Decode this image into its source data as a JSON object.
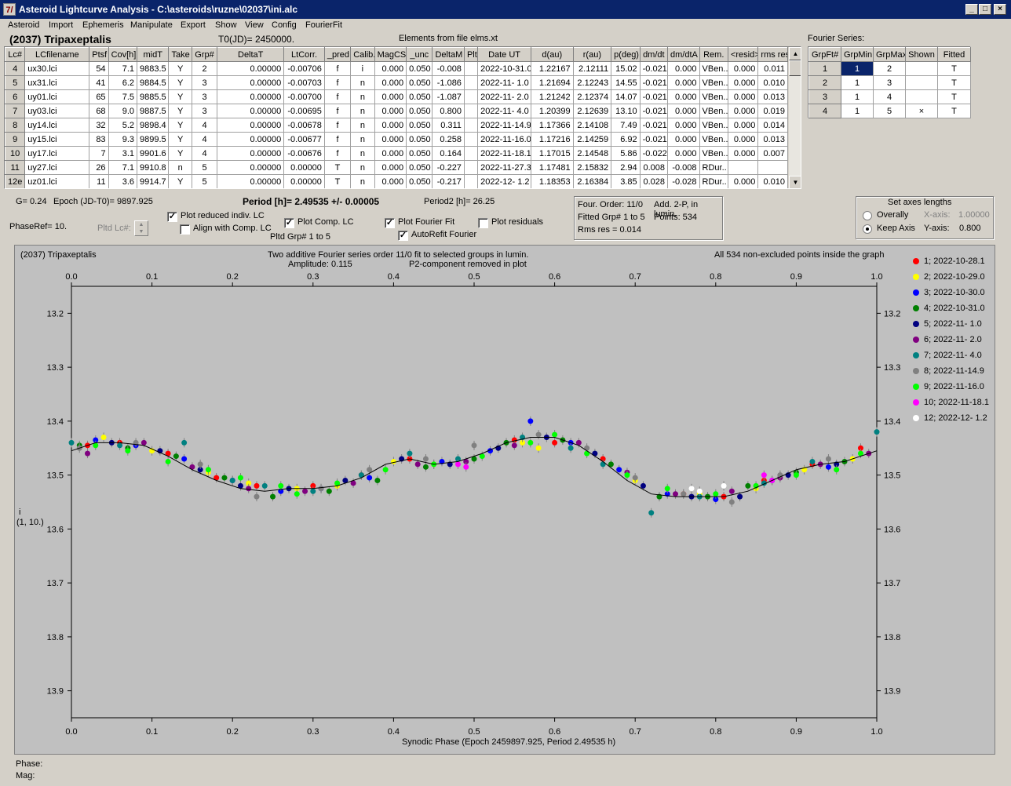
{
  "window": {
    "title": "Asteroid Lightcurve Analysis - C:\\asteroids\\ruzne\\02037\\ini.alc",
    "app_icon_glyph": "7/",
    "min_glyph": "_",
    "max_glyph": "□",
    "close_glyph": "×"
  },
  "menu": [
    "Asteroid",
    "Import",
    "Ephemeris",
    "Manipulate",
    "Export",
    "Show",
    "View",
    "Config",
    "FourierFit"
  ],
  "header": {
    "asteroid": "(2037) Tripaxeptalis",
    "t0": "T0(JD)= 2450000.",
    "elements": "Elements from file elms.xt",
    "fourier_title": "Fourier Series:"
  },
  "table": {
    "columns": [
      "Lc#",
      "LCfilename",
      "Ptsf",
      "Cov[h]",
      "midT",
      "Take",
      "Grp#",
      "DeltaT",
      "LtCorr.",
      "_pred.",
      "Calib.",
      "MagCS",
      "_unc",
      "DeltaM",
      "Plt",
      "Date UT",
      "d(au)",
      "r(au)",
      "p(deg)",
      "dm/dt",
      "dm/dtA",
      "Rem.",
      "<resid>",
      "rms res"
    ],
    "rows": [
      [
        "4",
        "ux30.lci",
        "54",
        "7.1",
        "9883.5",
        "Y",
        "2",
        "0.00000",
        "-0.00706",
        "f",
        "i",
        "0.000",
        "0.050",
        "-0.008",
        "",
        "2022-10-31.0",
        "1.22167",
        "2.12111",
        "15.02",
        "-0.021",
        "0.000",
        "VBen..",
        "0.000",
        "0.011"
      ],
      [
        "5",
        "ux31.lci",
        "41",
        "6.2",
        "9884.5",
        "Y",
        "3",
        "0.00000",
        "-0.00703",
        "f",
        "n",
        "0.000",
        "0.050",
        "-1.086",
        "",
        "2022-11- 1.0",
        "1.21694",
        "2.12243",
        "14.55",
        "-0.021",
        "0.000",
        "VBen..",
        "0.000",
        "0.010"
      ],
      [
        "6",
        "uy01.lci",
        "65",
        "7.5",
        "9885.5",
        "Y",
        "3",
        "0.00000",
        "-0.00700",
        "f",
        "n",
        "0.000",
        "0.050",
        "-1.087",
        "",
        "2022-11- 2.0",
        "1.21242",
        "2.12374",
        "14.07",
        "-0.021",
        "0.000",
        "VBen..",
        "0.000",
        "0.013"
      ],
      [
        "7",
        "uy03.lci",
        "68",
        "9.0",
        "9887.5",
        "Y",
        "3",
        "0.00000",
        "-0.00695",
        "f",
        "n",
        "0.000",
        "0.050",
        "0.800",
        "",
        "2022-11- 4.0",
        "1.20399",
        "2.12639",
        "13.10",
        "-0.021",
        "0.000",
        "VBen..",
        "0.000",
        "0.019"
      ],
      [
        "8",
        "uy14.lci",
        "32",
        "5.2",
        "9898.4",
        "Y",
        "4",
        "0.00000",
        "-0.00678",
        "f",
        "n",
        "0.000",
        "0.050",
        "0.311",
        "",
        "2022-11-14.9",
        "1.17366",
        "2.14108",
        "7.49",
        "-0.021",
        "0.000",
        "VBen..",
        "0.000",
        "0.014"
      ],
      [
        "9",
        "uy15.lci",
        "83",
        "9.3",
        "9899.5",
        "Y",
        "4",
        "0.00000",
        "-0.00677",
        "f",
        "n",
        "0.000",
        "0.050",
        "0.258",
        "",
        "2022-11-16.0",
        "1.17216",
        "2.14259",
        "6.92",
        "-0.021",
        "0.000",
        "VBen..",
        "0.000",
        "0.013"
      ],
      [
        "10",
        "uy17.lci",
        "7",
        "3.1",
        "9901.6",
        "Y",
        "4",
        "0.00000",
        "-0.00676",
        "f",
        "n",
        "0.000",
        "0.050",
        "0.164",
        "",
        "2022-11-18.1",
        "1.17015",
        "2.14548",
        "5.86",
        "-0.022",
        "0.000",
        "VBen..",
        "0.000",
        "0.007"
      ],
      [
        "11",
        "uy27.lci",
        "26",
        "7.1",
        "9910.8",
        "n",
        "5",
        "0.00000",
        "0.00000",
        "T",
        "n",
        "0.000",
        "0.050",
        "-0.227",
        "",
        "2022-11-27.3",
        "1.17481",
        "2.15832",
        "2.94",
        "0.008",
        "-0.008",
        "RDur..",
        "",
        ""
      ],
      [
        "12e",
        "uz01.lci",
        "11",
        "3.6",
        "9914.7",
        "Y",
        "5",
        "0.00000",
        "0.00000",
        "T",
        "n",
        "0.000",
        "0.050",
        "-0.217",
        "",
        "2022-12- 1.2",
        "1.18353",
        "2.16384",
        "3.85",
        "0.028",
        "-0.028",
        "RDur..",
        "0.000",
        "0.010"
      ]
    ]
  },
  "fourier_table": {
    "columns": [
      "GrpFt#",
      "GrpMin",
      "GrpMax",
      "Shown",
      "Fitted"
    ],
    "rows": [
      [
        "1",
        "1",
        "2",
        "",
        "T"
      ],
      [
        "2",
        "1",
        "3",
        "",
        "T"
      ],
      [
        "3",
        "1",
        "4",
        "",
        "T"
      ],
      [
        "4",
        "1",
        "5",
        "×",
        "T"
      ]
    ]
  },
  "controls": {
    "g": "G= 0.24",
    "epoch": "Epoch (JD-T0)= 9897.925",
    "period": "Period [h]= 2.49535 +/- 0.00005",
    "period2": "Period2 [h]= 26.25",
    "phaseref": "PhaseRef= 10.",
    "pltd_lc": "Pltd Lc#:",
    "plot_reduced": "Plot reduced indiv. LC",
    "align_comp": "Align with Comp. LC",
    "plot_comp": "Plot Comp. LC",
    "pltd_grp": "Pltd Grp#  1   to   5",
    "plot_fourier": "Plot Fourier Fit",
    "autorefit": "AutoRefit Fourier",
    "plot_residuals": "Plot residuals",
    "check_mark": "✓",
    "four_order": "Four. Order: 11/0",
    "add2p": "Add. 2-P, in lumin.",
    "fitted_grp": "Fitted Grp# 1 to 5",
    "points": "Points: 534",
    "rms_res": "Rms res     = 0.014",
    "axes_title": "Set axes lengths",
    "overally": "Overally",
    "keep_axis": "Keep Axis",
    "xaxis_label": "X-axis:",
    "xaxis_val": "1.00000",
    "yaxis_label": "Y-axis:",
    "yaxis_val": "0.800"
  },
  "plot": {
    "title_left": "(2037) Tripaxeptalis",
    "title_center1": "Two additive Fourier series order 11/0 fit to selected groups in lumin.",
    "title_center2": "Amplitude: 0.115",
    "title_center3": "P2-component removed in plot",
    "title_right": "All 534 non-excluded points inside the graph",
    "ylabel1": "i",
    "ylabel2": "(1, 10.)",
    "xlabel": "Synodic Phase (Epoch 2459897.925, Period 2.49535 h)",
    "bg_color": "#c0c0c0"
  },
  "chart_data": {
    "type": "scatter",
    "xlabel": "Synodic Phase (Epoch 2459897.925, Period 2.49535 h)",
    "ylabel": "i",
    "xlim": [
      0.0,
      1.0
    ],
    "ylim": [
      13.15,
      13.95
    ],
    "y_inverted": true,
    "x_ticks": [
      "0.0",
      "0.1",
      "0.2",
      "0.3",
      "0.4",
      "0.5",
      "0.6",
      "0.7",
      "0.8",
      "0.9",
      "1.0"
    ],
    "y_ticks": [
      "13.2",
      "13.3",
      "13.4",
      "13.5",
      "13.6",
      "13.7",
      "13.8",
      "13.9"
    ],
    "grid": false,
    "legend_position": "right",
    "fit_curve": {
      "x": [
        0.0,
        0.03,
        0.06,
        0.09,
        0.12,
        0.15,
        0.18,
        0.21,
        0.24,
        0.27,
        0.3,
        0.33,
        0.36,
        0.39,
        0.42,
        0.45,
        0.48,
        0.51,
        0.54,
        0.57,
        0.6,
        0.63,
        0.66,
        0.69,
        0.72,
        0.75,
        0.78,
        0.81,
        0.84,
        0.87,
        0.9,
        0.93,
        0.96,
        1.0
      ],
      "y": [
        13.455,
        13.44,
        13.44,
        13.445,
        13.465,
        13.49,
        13.51,
        13.525,
        13.53,
        13.525,
        13.525,
        13.52,
        13.505,
        13.48,
        13.47,
        13.48,
        13.475,
        13.46,
        13.44,
        13.43,
        13.43,
        13.445,
        13.475,
        13.51,
        13.535,
        13.54,
        13.54,
        13.54,
        13.53,
        13.51,
        13.49,
        13.48,
        13.475,
        13.455
      ]
    },
    "series": [
      {
        "name": "1; 2022-10-28.1",
        "color": "#ff0000",
        "points": [
          [
            0.02,
            13.445
          ],
          [
            0.06,
            13.44
          ],
          [
            0.12,
            13.46
          ],
          [
            0.18,
            13.505
          ],
          [
            0.23,
            13.52
          ],
          [
            0.3,
            13.52
          ],
          [
            0.36,
            13.5
          ],
          [
            0.42,
            13.47
          ],
          [
            0.55,
            13.435
          ],
          [
            0.6,
            13.44
          ],
          [
            0.66,
            13.47
          ],
          [
            0.76,
            13.535
          ],
          [
            0.81,
            13.54
          ],
          [
            0.86,
            13.51
          ],
          [
            0.92,
            13.48
          ],
          [
            0.98,
            13.45
          ]
        ]
      },
      {
        "name": "2; 2022-10-29.0",
        "color": "#ffff00",
        "points": [
          [
            0.04,
            13.43
          ],
          [
            0.1,
            13.455
          ],
          [
            0.17,
            13.495
          ],
          [
            0.22,
            13.515
          ],
          [
            0.28,
            13.525
          ],
          [
            0.33,
            13.52
          ],
          [
            0.4,
            13.475
          ],
          [
            0.45,
            13.48
          ],
          [
            0.56,
            13.44
          ],
          [
            0.58,
            13.45
          ],
          [
            0.7,
            13.51
          ],
          [
            0.78,
            13.535
          ],
          [
            0.85,
            13.525
          ],
          [
            0.91,
            13.49
          ],
          [
            0.97,
            13.47
          ]
        ]
      },
      {
        "name": "3; 2022-10-30.0",
        "color": "#0000ff",
        "points": [
          [
            0.03,
            13.435
          ],
          [
            0.08,
            13.445
          ],
          [
            0.14,
            13.47
          ],
          [
            0.2,
            13.51
          ],
          [
            0.26,
            13.53
          ],
          [
            0.31,
            13.525
          ],
          [
            0.37,
            13.505
          ],
          [
            0.46,
            13.475
          ],
          [
            0.52,
            13.455
          ],
          [
            0.57,
            13.4
          ],
          [
            0.62,
            13.44
          ],
          [
            0.68,
            13.49
          ],
          [
            0.74,
            13.535
          ],
          [
            0.8,
            13.545
          ],
          [
            0.87,
            13.51
          ],
          [
            0.94,
            13.485
          ]
        ]
      },
      {
        "name": "4; 2022-10-31.0",
        "color": "#008000",
        "points": [
          [
            0.01,
            13.445
          ],
          [
            0.07,
            13.45
          ],
          [
            0.13,
            13.465
          ],
          [
            0.19,
            13.505
          ],
          [
            0.25,
            13.54
          ],
          [
            0.32,
            13.53
          ],
          [
            0.38,
            13.51
          ],
          [
            0.44,
            13.485
          ],
          [
            0.5,
            13.47
          ],
          [
            0.54,
            13.44
          ],
          [
            0.61,
            13.435
          ],
          [
            0.67,
            13.48
          ],
          [
            0.73,
            13.54
          ],
          [
            0.79,
            13.54
          ],
          [
            0.84,
            13.52
          ],
          [
            0.9,
            13.495
          ],
          [
            0.96,
            13.475
          ]
        ]
      },
      {
        "name": "5; 2022-11- 1.0",
        "color": "#000080",
        "points": [
          [
            0.05,
            13.44
          ],
          [
            0.11,
            13.455
          ],
          [
            0.16,
            13.49
          ],
          [
            0.21,
            13.52
          ],
          [
            0.27,
            13.525
          ],
          [
            0.34,
            13.51
          ],
          [
            0.41,
            13.47
          ],
          [
            0.47,
            13.48
          ],
          [
            0.53,
            13.45
          ],
          [
            0.59,
            13.43
          ],
          [
            0.65,
            13.46
          ],
          [
            0.71,
            13.52
          ],
          [
            0.77,
            13.54
          ],
          [
            0.83,
            13.54
          ],
          [
            0.89,
            13.5
          ],
          [
            0.95,
            13.48
          ]
        ]
      },
      {
        "name": "6; 2022-11- 2.0",
        "color": "#800080",
        "points": [
          [
            0.02,
            13.46
          ],
          [
            0.09,
            13.44
          ],
          [
            0.15,
            13.485
          ],
          [
            0.22,
            13.525
          ],
          [
            0.29,
            13.53
          ],
          [
            0.35,
            13.515
          ],
          [
            0.43,
            13.48
          ],
          [
            0.49,
            13.475
          ],
          [
            0.55,
            13.445
          ],
          [
            0.63,
            13.44
          ],
          [
            0.69,
            13.495
          ],
          [
            0.75,
            13.535
          ],
          [
            0.82,
            13.53
          ],
          [
            0.88,
            13.505
          ],
          [
            0.93,
            13.48
          ],
          [
            0.99,
            13.46
          ]
        ]
      },
      {
        "name": "7; 2022-11- 4.0",
        "color": "#008080",
        "points": [
          [
            0.0,
            13.44
          ],
          [
            0.06,
            13.445
          ],
          [
            0.14,
            13.44
          ],
          [
            0.2,
            13.51
          ],
          [
            0.24,
            13.52
          ],
          [
            0.3,
            13.53
          ],
          [
            0.36,
            13.5
          ],
          [
            0.42,
            13.46
          ],
          [
            0.48,
            13.47
          ],
          [
            0.56,
            13.43
          ],
          [
            0.62,
            13.45
          ],
          [
            0.66,
            13.48
          ],
          [
            0.72,
            13.57
          ],
          [
            0.78,
            13.54
          ],
          [
            0.86,
            13.515
          ],
          [
            0.92,
            13.475
          ],
          [
            1.0,
            13.42
          ]
        ]
      },
      {
        "name": "8; 2022-11-14.9",
        "color": "#808080",
        "points": [
          [
            0.01,
            13.45
          ],
          [
            0.08,
            13.44
          ],
          [
            0.16,
            13.48
          ],
          [
            0.23,
            13.54
          ],
          [
            0.31,
            13.525
          ],
          [
            0.37,
            13.49
          ],
          [
            0.44,
            13.47
          ],
          [
            0.5,
            13.445
          ],
          [
            0.58,
            13.425
          ],
          [
            0.64,
            13.45
          ],
          [
            0.7,
            13.505
          ],
          [
            0.76,
            13.535
          ],
          [
            0.82,
            13.55
          ],
          [
            0.88,
            13.5
          ],
          [
            0.94,
            13.47
          ]
        ]
      },
      {
        "name": "9; 2022-11-16.0",
        "color": "#00ff00",
        "points": [
          [
            0.03,
            13.445
          ],
          [
            0.07,
            13.455
          ],
          [
            0.12,
            13.475
          ],
          [
            0.17,
            13.49
          ],
          [
            0.21,
            13.505
          ],
          [
            0.26,
            13.52
          ],
          [
            0.28,
            13.535
          ],
          [
            0.33,
            13.515
          ],
          [
            0.39,
            13.49
          ],
          [
            0.45,
            13.48
          ],
          [
            0.51,
            13.465
          ],
          [
            0.57,
            13.44
          ],
          [
            0.6,
            13.425
          ],
          [
            0.64,
            13.46
          ],
          [
            0.69,
            13.5
          ],
          [
            0.74,
            13.525
          ],
          [
            0.8,
            13.535
          ],
          [
            0.85,
            13.52
          ],
          [
            0.9,
            13.5
          ],
          [
            0.95,
            13.49
          ],
          [
            0.98,
            13.46
          ]
        ]
      },
      {
        "name": "10; 2022-11-18.1",
        "color": "#ff00ff",
        "points": [
          [
            0.48,
            13.48
          ],
          [
            0.49,
            13.485
          ],
          [
            0.86,
            13.5
          ],
          [
            0.87,
            13.51
          ]
        ]
      },
      {
        "name": "12; 2022-12- 1.2",
        "color": "#ffffff",
        "points": [
          [
            0.77,
            13.525
          ],
          [
            0.78,
            13.53
          ],
          [
            0.81,
            13.52
          ]
        ]
      }
    ]
  },
  "status": {
    "phase": "Phase:",
    "mag": "Mag:"
  }
}
